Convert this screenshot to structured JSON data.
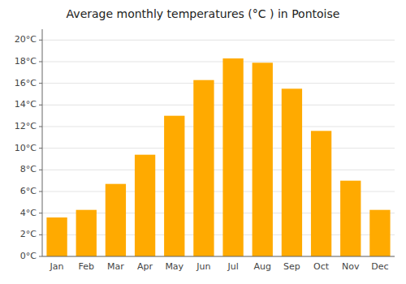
{
  "chart_data": {
    "type": "bar",
    "title": "Average monthly temperatures (°C ) in Pontoise",
    "categories": [
      "Jan",
      "Feb",
      "Mar",
      "Apr",
      "May",
      "Jun",
      "Jul",
      "Aug",
      "Sep",
      "Oct",
      "Nov",
      "Dec"
    ],
    "values": [
      3.6,
      4.3,
      6.7,
      9.4,
      13.0,
      16.3,
      18.3,
      17.9,
      15.5,
      11.6,
      7.0,
      4.3
    ],
    "color": "#FFAA00",
    "ylim": [
      0,
      21
    ],
    "yticks": [
      {
        "value": 0,
        "label": "0°C"
      },
      {
        "value": 2,
        "label": "2°C"
      },
      {
        "value": 4,
        "label": "4°C"
      },
      {
        "value": 6,
        "label": "6°C"
      },
      {
        "value": 8,
        "label": "8°C"
      },
      {
        "value": 10,
        "label": "10°C"
      },
      {
        "value": 12,
        "label": "12°C"
      },
      {
        "value": 14,
        "label": "14°C"
      },
      {
        "value": 16,
        "label": "16°C"
      },
      {
        "value": 18,
        "label": "18°C"
      },
      {
        "value": 20,
        "label": "20°C"
      }
    ],
    "grid": true
  }
}
